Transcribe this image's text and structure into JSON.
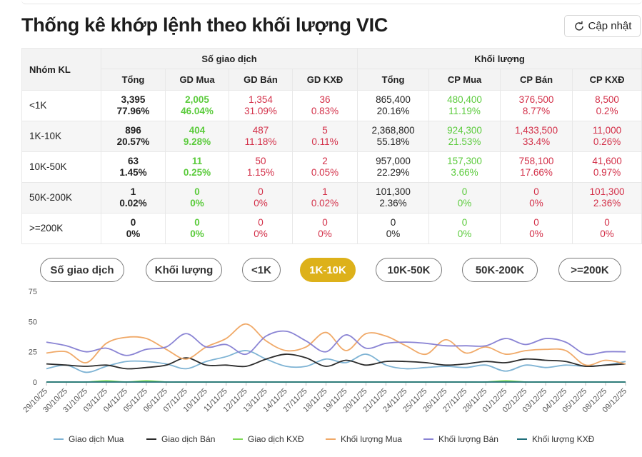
{
  "title": "Thống kê khớp lệnh theo khối lượng VIC",
  "refresh_label": "Cập nhật",
  "table": {
    "nhom_header": "Nhóm KL",
    "group_headers": [
      "Số giao dịch",
      "Khối lượng"
    ],
    "sub_headers": [
      "Tổng",
      "GD Mua",
      "GD Bán",
      "GD KXĐ",
      "Tổng",
      "CP Mua",
      "CP Bán",
      "CP KXĐ"
    ],
    "rows": [
      {
        "label": "<1K",
        "cells": [
          {
            "v": "3,395",
            "p": "77.96%"
          },
          {
            "v": "2,005",
            "p": "46.04%"
          },
          {
            "v": "1,354",
            "p": "31.09%"
          },
          {
            "v": "36",
            "p": "0.83%"
          },
          {
            "v": "865,400",
            "p": "20.16%"
          },
          {
            "v": "480,400",
            "p": "11.19%"
          },
          {
            "v": "376,500",
            "p": "8.77%"
          },
          {
            "v": "8,500",
            "p": "0.2%"
          }
        ]
      },
      {
        "label": "1K-10K",
        "cells": [
          {
            "v": "896",
            "p": "20.57%"
          },
          {
            "v": "404",
            "p": "9.28%"
          },
          {
            "v": "487",
            "p": "11.18%"
          },
          {
            "v": "5",
            "p": "0.11%"
          },
          {
            "v": "2,368,800",
            "p": "55.18%"
          },
          {
            "v": "924,300",
            "p": "21.53%"
          },
          {
            "v": "1,433,500",
            "p": "33.4%"
          },
          {
            "v": "11,000",
            "p": "0.26%"
          }
        ]
      },
      {
        "label": "10K-50K",
        "cells": [
          {
            "v": "63",
            "p": "1.45%"
          },
          {
            "v": "11",
            "p": "0.25%"
          },
          {
            "v": "50",
            "p": "1.15%"
          },
          {
            "v": "2",
            "p": "0.05%"
          },
          {
            "v": "957,000",
            "p": "22.29%"
          },
          {
            "v": "157,300",
            "p": "3.66%"
          },
          {
            "v": "758,100",
            "p": "17.66%"
          },
          {
            "v": "41,600",
            "p": "0.97%"
          }
        ]
      },
      {
        "label": "50K-200K",
        "cells": [
          {
            "v": "1",
            "p": "0.02%"
          },
          {
            "v": "0",
            "p": "0%"
          },
          {
            "v": "0",
            "p": "0%"
          },
          {
            "v": "1",
            "p": "0.02%"
          },
          {
            "v": "101,300",
            "p": "2.36%"
          },
          {
            "v": "0",
            "p": "0%"
          },
          {
            "v": "0",
            "p": "0%"
          },
          {
            "v": "101,300",
            "p": "2.36%"
          }
        ]
      },
      {
        "label": ">=200K",
        "cells": [
          {
            "v": "0",
            "p": "0%"
          },
          {
            "v": "0",
            "p": "0%"
          },
          {
            "v": "0",
            "p": "0%"
          },
          {
            "v": "0",
            "p": "0%"
          },
          {
            "v": "0",
            "p": "0%"
          },
          {
            "v": "0",
            "p": "0%"
          },
          {
            "v": "0",
            "p": "0%"
          },
          {
            "v": "0",
            "p": "0%"
          }
        ]
      }
    ]
  },
  "tabs": [
    {
      "label": "Số giao dịch",
      "active": false
    },
    {
      "label": "Khối lượng",
      "active": false
    },
    {
      "label": "<1K",
      "active": false
    },
    {
      "label": "1K-10K",
      "active": true
    },
    {
      "label": "10K-50K",
      "active": false
    },
    {
      "label": "50K-200K",
      "active": false
    },
    {
      "label": ">=200K",
      "active": false
    }
  ],
  "colors": {
    "green": "#5bcb3c",
    "red": "#d32f48",
    "active_tab": "#ddb11a"
  },
  "chart_data": {
    "type": "line",
    "ylim": [
      0,
      75
    ],
    "yticks": [
      0,
      25,
      50,
      75
    ],
    "grid": false,
    "legend_position": "bottom",
    "categories": [
      "29/10/25",
      "30/10/25",
      "31/10/25",
      "03/11/25",
      "04/11/25",
      "05/11/25",
      "06/11/25",
      "07/11/25",
      "10/11/25",
      "11/11/25",
      "12/11/25",
      "13/11/25",
      "14/11/25",
      "17/11/25",
      "18/11/25",
      "19/11/25",
      "20/11/25",
      "21/11/25",
      "24/11/25",
      "25/11/25",
      "26/11/25",
      "27/11/25",
      "28/11/25",
      "01/12/25",
      "02/12/25",
      "03/12/25",
      "04/12/25",
      "05/12/25",
      "08/12/25",
      "09/12/25"
    ],
    "series": [
      {
        "name": "Giao dịch Mua",
        "color": "#7eb3d4",
        "values": [
          11,
          14,
          8,
          13,
          17,
          17,
          15,
          11,
          17,
          21,
          26,
          19,
          13,
          13,
          19,
          16,
          23,
          14,
          11,
          12,
          13,
          12,
          14,
          9,
          14,
          12,
          14,
          13,
          14,
          17
        ]
      },
      {
        "name": "Giao dịch Bán",
        "color": "#2b2b2b",
        "values": [
          15,
          14,
          13,
          14,
          11,
          12,
          14,
          20,
          14,
          14,
          13,
          19,
          23,
          20,
          13,
          18,
          14,
          17,
          17,
          16,
          14,
          15,
          17,
          16,
          19,
          18,
          17,
          13,
          14,
          15
        ]
      },
      {
        "name": "Giao dịch KXĐ",
        "color": "#7ed957",
        "values": [
          0,
          0,
          0,
          1,
          0,
          1,
          0,
          0,
          0,
          0,
          0,
          0,
          0,
          0,
          0,
          0,
          0,
          0,
          0,
          0,
          0,
          0,
          0,
          1,
          0,
          0,
          0,
          0,
          0,
          0
        ]
      },
      {
        "name": "Khối lượng Mua",
        "color": "#f0a968",
        "values": [
          24,
          25,
          16,
          32,
          37,
          36,
          27,
          19,
          29,
          36,
          48,
          34,
          26,
          29,
          41,
          26,
          40,
          38,
          30,
          23,
          35,
          24,
          29,
          23,
          26,
          27,
          26,
          14,
          18,
          15
        ]
      },
      {
        "name": "Khối lượng Bán",
        "color": "#8a84d4",
        "values": [
          33,
          30,
          25,
          28,
          22,
          27,
          29,
          40,
          29,
          31,
          23,
          38,
          42,
          34,
          25,
          39,
          28,
          32,
          33,
          32,
          30,
          30,
          30,
          36,
          31,
          36,
          33,
          23,
          25,
          25
        ]
      },
      {
        "name": "Khối lượng KXĐ",
        "color": "#1e6e7a",
        "values": [
          0,
          0,
          0,
          0,
          0,
          0,
          0,
          0,
          0,
          0,
          0,
          0,
          0,
          0,
          0,
          0,
          0,
          0,
          0,
          0,
          0,
          0,
          0,
          0,
          0,
          0,
          0,
          0,
          0,
          0
        ]
      }
    ]
  }
}
